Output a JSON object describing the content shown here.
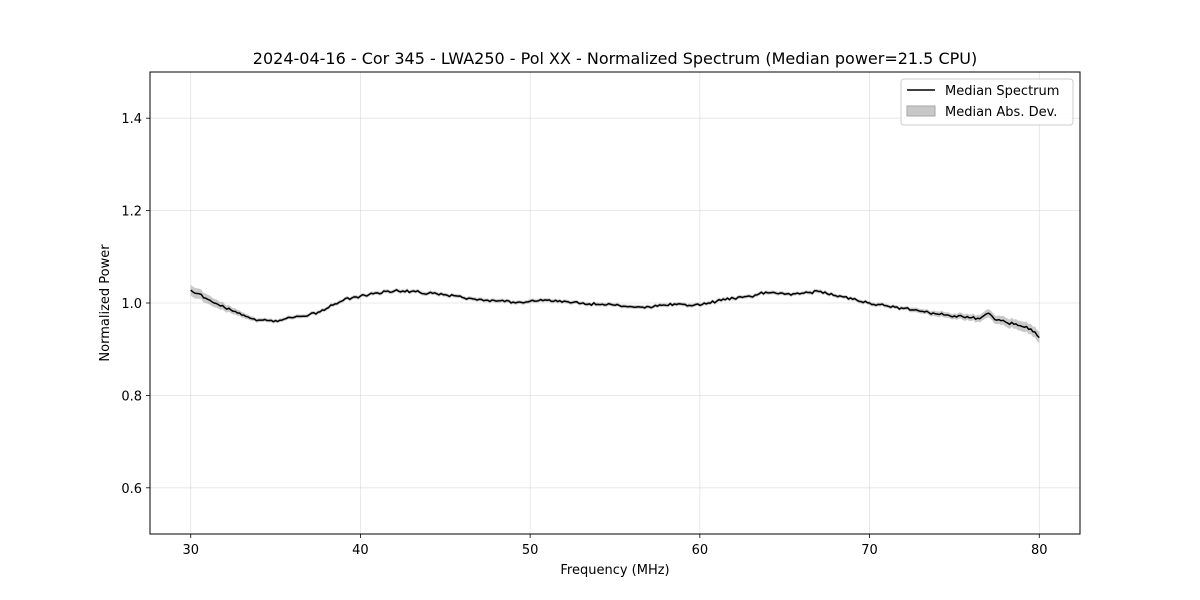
{
  "chart_data": {
    "type": "line",
    "title": "2024-04-16 - Cor 345 - LWA250 - Pol XX - Normalized Spectrum (Median power=21.5 CPU)",
    "xlabel": "Frequency (MHz)",
    "ylabel": "Normalized Power",
    "xlim": [
      27.6,
      82.4
    ],
    "ylim": [
      0.5,
      1.5
    ],
    "xticks": [
      30,
      40,
      50,
      60,
      70,
      80
    ],
    "yticks": [
      0.6,
      0.8,
      1.0,
      1.2,
      1.4
    ],
    "xtick_labels": [
      "30",
      "40",
      "50",
      "60",
      "70",
      "80"
    ],
    "ytick_labels": [
      "0.6",
      "0.8",
      "1.0",
      "1.2",
      "1.4"
    ],
    "grid": true,
    "legend_position": "top-right",
    "series": [
      {
        "name": "Median Spectrum",
        "color": "#000000",
        "x": [
          30,
          30.5,
          31,
          31.5,
          32,
          32.5,
          33,
          33.5,
          34,
          34.5,
          35,
          35.5,
          36,
          36.5,
          37,
          37.5,
          38,
          38.5,
          39,
          39.5,
          40,
          40.5,
          41,
          41.5,
          42,
          42.5,
          43,
          43.5,
          44,
          44.5,
          45,
          45.5,
          46,
          46.5,
          47,
          47.5,
          48,
          48.5,
          49,
          49.5,
          50,
          50.5,
          51,
          51.5,
          52,
          52.5,
          53,
          53.5,
          54,
          54.5,
          55,
          55.5,
          56,
          56.5,
          57,
          57.5,
          58,
          58.5,
          59,
          59.5,
          60,
          60.5,
          61,
          61.5,
          62,
          62.5,
          63,
          63.5,
          64,
          64.5,
          65,
          65.5,
          66,
          66.5,
          67,
          67.5,
          68,
          68.5,
          69,
          69.5,
          70,
          70.5,
          71,
          71.5,
          72,
          72.5,
          73,
          73.5,
          74,
          74.5,
          75,
          75.5,
          76,
          76.5,
          77,
          77.5,
          78,
          78.5,
          79,
          79.5,
          80
        ],
        "values": [
          1.028,
          1.02,
          1.008,
          0.999,
          0.99,
          0.982,
          0.974,
          0.967,
          0.963,
          0.962,
          0.962,
          0.965,
          0.968,
          0.971,
          0.975,
          0.98,
          0.988,
          0.998,
          1.006,
          1.011,
          1.015,
          1.018,
          1.022,
          1.025,
          1.026,
          1.026,
          1.025,
          1.023,
          1.021,
          1.02,
          1.018,
          1.016,
          1.012,
          1.01,
          1.008,
          1.006,
          1.004,
          1.003,
          1.002,
          1.001,
          1.004,
          1.005,
          1.006,
          1.006,
          1.004,
          1.001,
          0.999,
          0.998,
          0.997,
          0.996,
          0.995,
          0.993,
          0.992,
          0.991,
          0.992,
          0.993,
          0.995,
          0.998,
          0.997,
          0.994,
          0.995,
          1.0,
          1.004,
          1.007,
          1.01,
          1.012,
          1.014,
          1.02,
          1.022,
          1.021,
          1.019,
          1.02,
          1.021,
          1.023,
          1.025,
          1.02,
          1.016,
          1.013,
          1.008,
          1.003,
          1.0,
          0.997,
          0.994,
          0.991,
          0.988,
          0.985,
          0.982,
          0.979,
          0.976,
          0.974,
          0.972,
          0.97,
          0.968,
          0.966,
          0.978,
          0.963,
          0.959,
          0.954,
          0.949,
          0.944,
          0.925
        ]
      },
      {
        "name": "Median Abs. Dev.",
        "color": "#a6a6a6",
        "band_halfwidth": [
          0.012,
          0.011,
          0.01,
          0.009,
          0.008,
          0.007,
          0.006,
          0.005,
          0.004,
          0.004,
          0.004,
          0.004,
          0.004,
          0.004,
          0.004,
          0.004,
          0.004,
          0.004,
          0.004,
          0.004,
          0.004,
          0.004,
          0.004,
          0.004,
          0.004,
          0.004,
          0.004,
          0.004,
          0.004,
          0.004,
          0.004,
          0.004,
          0.004,
          0.004,
          0.004,
          0.004,
          0.004,
          0.004,
          0.004,
          0.004,
          0.004,
          0.004,
          0.004,
          0.004,
          0.004,
          0.004,
          0.004,
          0.004,
          0.004,
          0.004,
          0.004,
          0.004,
          0.004,
          0.004,
          0.004,
          0.004,
          0.004,
          0.004,
          0.004,
          0.004,
          0.004,
          0.004,
          0.004,
          0.004,
          0.004,
          0.004,
          0.004,
          0.004,
          0.004,
          0.004,
          0.004,
          0.004,
          0.004,
          0.004,
          0.004,
          0.004,
          0.004,
          0.004,
          0.004,
          0.004,
          0.004,
          0.004,
          0.004,
          0.004,
          0.004,
          0.005,
          0.005,
          0.005,
          0.006,
          0.006,
          0.006,
          0.007,
          0.007,
          0.008,
          0.009,
          0.009,
          0.01,
          0.01,
          0.011,
          0.011,
          0.012
        ]
      }
    ]
  }
}
